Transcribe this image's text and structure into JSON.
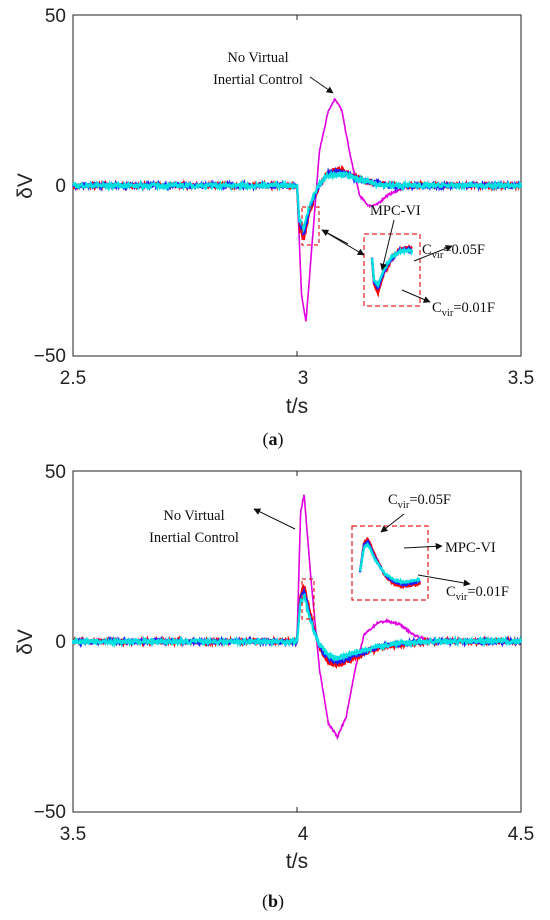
{
  "chart_data": [
    {
      "type": "line",
      "caption": "(a)",
      "caption_letter": "a",
      "xlabel": "t/s",
      "ylabel": "δV",
      "xlim": [
        2.5,
        3.5
      ],
      "ylim": [
        -50,
        50
      ],
      "x_ticks": [
        "2.5",
        "3",
        "3.5"
      ],
      "y_ticks": [
        "50",
        "0",
        "−50"
      ],
      "grid": false,
      "disturbance_time": 3.0,
      "series": [
        {
          "color": "#E000E0",
          "x": [
            2.5,
            3.0,
            3.01,
            3.02,
            3.035,
            3.05,
            3.07,
            3.085,
            3.1,
            3.12,
            3.14,
            3.16,
            3.18,
            3.2,
            3.24,
            3.3,
            3.4,
            3.5
          ],
          "y": [
            0,
            0,
            -32,
            -40,
            -15,
            10,
            22,
            25.5,
            22,
            8,
            -3,
            -6,
            -5.5,
            -3,
            -0.5,
            0,
            0,
            0
          ]
        },
        {
          "color": "#FF0000",
          "x": [
            2.5,
            3.0,
            3.005,
            3.015,
            3.03,
            3.05,
            3.07,
            3.09,
            3.11,
            3.13,
            3.16,
            3.2,
            3.25,
            3.3,
            3.4,
            3.5
          ],
          "y": [
            0,
            0,
            -12,
            -16,
            -7,
            0,
            4,
            5,
            4,
            2.5,
            1,
            0,
            0,
            0,
            0,
            0
          ]
        },
        {
          "color": "#2020FF",
          "x": [
            2.5,
            3.0,
            3.005,
            3.015,
            3.03,
            3.05,
            3.07,
            3.09,
            3.11,
            3.13,
            3.16,
            3.2,
            3.25,
            3.3,
            3.4,
            3.5
          ],
          "y": [
            0,
            0,
            -11,
            -14,
            -6,
            0,
            3.5,
            4,
            3.5,
            2,
            1,
            0,
            0,
            0,
            0,
            0
          ]
        },
        {
          "color": "#00E0E0",
          "x": [
            2.5,
            3.0,
            3.005,
            3.015,
            3.03,
            3.05,
            3.07,
            3.09,
            3.11,
            3.13,
            3.16,
            3.2,
            3.25,
            3.3,
            3.4,
            3.5
          ],
          "y": [
            0,
            0,
            -10,
            -12.5,
            -5,
            0.5,
            3,
            3.5,
            3,
            2,
            1,
            0,
            0,
            0,
            0,
            0
          ]
        }
      ],
      "annotations": {
        "nvic_line1": "No Virtual",
        "nvic_line2": "Inertial Control",
        "mpc": "MPC-VI",
        "c_main": "C",
        "c_sub": "vir",
        "c005_val": "=0.05F",
        "c001_val": "=0.01F"
      }
    },
    {
      "type": "line",
      "caption": "(b)",
      "caption_letter": "b",
      "xlabel": "t/s",
      "ylabel": "δV",
      "xlim": [
        3.5,
        4.5
      ],
      "ylim": [
        -50,
        50
      ],
      "x_ticks": [
        "3.5",
        "4",
        "4.5"
      ],
      "y_ticks": [
        "50",
        "0",
        "−50"
      ],
      "grid": false,
      "disturbance_time": 4.0,
      "series": [
        {
          "color": "#E000E0",
          "x": [
            3.5,
            4.0,
            4.008,
            4.016,
            4.03,
            4.05,
            4.07,
            4.09,
            4.11,
            4.13,
            4.15,
            4.18,
            4.2,
            4.23,
            4.26,
            4.3,
            4.4,
            4.5
          ],
          "y": [
            0,
            0,
            38,
            43,
            20,
            -8,
            -24,
            -28,
            -22,
            -8,
            2,
            5.5,
            6,
            5,
            2,
            0,
            0,
            0
          ]
        },
        {
          "color": "#FF0000",
          "x": [
            3.5,
            4.0,
            4.008,
            4.016,
            4.03,
            4.05,
            4.07,
            4.09,
            4.11,
            4.14,
            4.18,
            4.22,
            4.26,
            4.3,
            4.4,
            4.5
          ],
          "y": [
            0,
            0,
            14,
            16,
            8,
            -2,
            -6,
            -7,
            -6,
            -4,
            -2,
            -1,
            -0.5,
            0,
            0,
            0
          ]
        },
        {
          "color": "#2020FF",
          "x": [
            3.5,
            4.0,
            4.008,
            4.016,
            4.03,
            4.05,
            4.07,
            4.09,
            4.11,
            4.14,
            4.18,
            4.22,
            4.26,
            4.3,
            4.4,
            4.5
          ],
          "y": [
            0,
            0,
            13,
            15,
            7,
            -1.5,
            -5,
            -6,
            -5,
            -3.5,
            -1.5,
            -0.8,
            -0.3,
            0,
            0,
            0
          ]
        },
        {
          "color": "#00E0E0",
          "x": [
            3.5,
            4.0,
            4.008,
            4.016,
            4.03,
            4.05,
            4.07,
            4.09,
            4.11,
            4.14,
            4.18,
            4.22,
            4.26,
            4.3,
            4.4,
            4.5
          ],
          "y": [
            0,
            0,
            12,
            13.5,
            6,
            -1,
            -4,
            -5,
            -4,
            -3,
            -1.5,
            -0.6,
            -0.2,
            0,
            0,
            0
          ]
        }
      ],
      "annotations": {
        "nvic_line1": "No Virtual",
        "nvic_line2": "Inertial Control",
        "mpc": "MPC-VI",
        "c_main": "C",
        "c_sub": "vir",
        "c005_val": "=0.05F",
        "c001_val": "=0.01F"
      }
    }
  ]
}
